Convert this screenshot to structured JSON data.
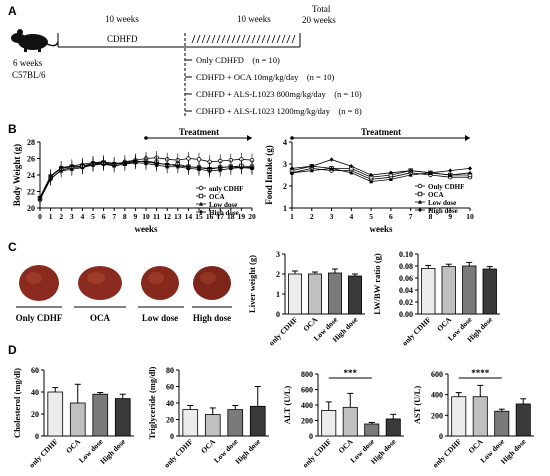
{
  "panels": {
    "a": "A",
    "b": "B",
    "c": "C",
    "d": "D"
  },
  "colors": {
    "only": "#ececec",
    "oca": "#c0c0c0",
    "low": "#7a7a7a",
    "high": "#3a3a3a",
    "line": "#000000"
  },
  "panel_a": {
    "mouse_age": "6 weeks",
    "strain": "C57BL/6",
    "phase1_weeks": "10 weeks",
    "phase1_diet": "CDHFD",
    "phase2_weeks": "10 weeks",
    "total_line1": "Total",
    "total_line2": "20 weeks",
    "groups": [
      "Only CDHFD    (n = 10)",
      "CDHFD + OCA 10mg/kg/day    (n = 10)",
      "CDHFD + ALS-L1023 800mg/kg/day    (n = 10)",
      "CDHFD + ALS-L1023 1200mg/kg/day    (n = 8)"
    ]
  },
  "chart_data": [
    {
      "type": "line",
      "ylabel": "Body Weight (g)",
      "xlabel": "weeks",
      "treatment_label": "Treatment",
      "x": [
        0,
        1,
        2,
        3,
        4,
        5,
        6,
        7,
        8,
        9,
        10,
        11,
        12,
        13,
        14,
        15,
        16,
        17,
        18,
        19,
        20
      ],
      "x_tick_labels": [
        "0",
        "1",
        "2",
        "3",
        "4",
        "5",
        "6",
        "7",
        "8",
        "9",
        "10",
        "11",
        "12",
        "13",
        "14",
        "15",
        "16",
        "17",
        "18",
        "19",
        "20"
      ],
      "ylim": [
        20,
        28
      ],
      "y_ticks": [
        "20",
        "22",
        "24",
        "26",
        "28"
      ],
      "legend": [
        "only CDHF",
        "OCA",
        "Low dose",
        "High dose"
      ],
      "series": [
        {
          "name": "only CDHF",
          "values": [
            21.0,
            23.5,
            24.6,
            24.9,
            25.0,
            25.3,
            25.4,
            25.2,
            25.6,
            25.8,
            26.0,
            26.1,
            25.9,
            25.8,
            26.0,
            25.9,
            25.6,
            25.7,
            25.8,
            25.9,
            25.8
          ]
        },
        {
          "name": "OCA",
          "values": [
            21.2,
            23.8,
            24.8,
            25.0,
            25.1,
            25.4,
            25.5,
            25.3,
            25.4,
            25.6,
            25.7,
            25.5,
            25.2,
            25.3,
            25.0,
            24.9,
            24.7,
            24.9,
            25.0,
            25.1,
            25.0
          ]
        },
        {
          "name": "Low dose",
          "values": [
            21.1,
            23.6,
            24.5,
            24.7,
            24.9,
            25.2,
            25.3,
            25.1,
            25.3,
            25.5,
            25.4,
            25.2,
            25.0,
            25.0,
            24.8,
            24.7,
            24.5,
            24.6,
            24.8,
            24.9,
            24.8
          ]
        },
        {
          "name": "High dose",
          "values": [
            21.3,
            23.9,
            24.9,
            25.1,
            25.3,
            25.5,
            25.6,
            25.4,
            25.5,
            25.7,
            25.6,
            25.4,
            25.3,
            25.1,
            25.0,
            24.9,
            24.8,
            24.9,
            25.0,
            24.9,
            24.9
          ]
        }
      ]
    },
    {
      "type": "line",
      "ylabel": "Food Intake (g)",
      "xlabel": "weeks",
      "treatment_label": "Treatment",
      "x": [
        1,
        2,
        3,
        4,
        5,
        6,
        7,
        8,
        9,
        10
      ],
      "x_tick_labels": [
        "1",
        "2",
        "3",
        "4",
        "5",
        "6",
        "7",
        "8",
        "9",
        "10"
      ],
      "ylim": [
        1,
        4
      ],
      "y_ticks": [
        "1",
        "2",
        "3",
        "4"
      ],
      "legend": [
        "Only CDHF",
        "OCA",
        "Low dose",
        "High dose"
      ],
      "series": [
        {
          "name": "Only CDHF",
          "values": [
            2.6,
            2.8,
            2.7,
            2.7,
            2.3,
            2.4,
            2.6,
            2.5,
            2.4,
            2.4
          ]
        },
        {
          "name": "OCA",
          "values": [
            2.7,
            2.9,
            2.8,
            2.8,
            2.4,
            2.5,
            2.7,
            2.6,
            2.5,
            2.5
          ]
        },
        {
          "name": "Low dose",
          "values": [
            2.6,
            2.7,
            2.8,
            2.6,
            2.2,
            2.3,
            2.5,
            2.6,
            2.5,
            2.6
          ]
        },
        {
          "name": "High dose",
          "values": [
            2.8,
            2.9,
            3.2,
            2.9,
            2.5,
            2.6,
            2.7,
            2.6,
            2.7,
            2.8
          ]
        }
      ]
    },
    {
      "type": "bar",
      "ylabel": "Liver weight (g)",
      "categories": [
        "only CDHF",
        "OCA",
        "Low dose",
        "High dose"
      ],
      "values": [
        2.0,
        2.0,
        2.05,
        1.9
      ],
      "errors": [
        0.15,
        0.1,
        0.2,
        0.1
      ],
      "ylim": [
        0,
        3
      ],
      "y_ticks": [
        "0",
        "1",
        "2",
        "3"
      ]
    },
    {
      "type": "bar",
      "ylabel": "LW/BW ratio (g)",
      "categories": [
        "only CDHF",
        "OCA",
        "Low dose",
        "High dose"
      ],
      "values": [
        0.076,
        0.079,
        0.08,
        0.075
      ],
      "errors": [
        0.005,
        0.004,
        0.006,
        0.004
      ],
      "ylim": [
        0,
        0.1
      ],
      "y_ticks": [
        "0.00",
        "0.02",
        "0.04",
        "0.06",
        "0.08",
        "0.10"
      ]
    },
    {
      "type": "bar",
      "ylabel": "Cholesterol (mg/dl)",
      "categories": [
        "only CDHF",
        "OCA",
        "Low dose",
        "High dose"
      ],
      "values": [
        40,
        30,
        38,
        34
      ],
      "errors": [
        4,
        17,
        1.5,
        4
      ],
      "ylim": [
        0,
        60
      ],
      "y_ticks": [
        "0",
        "20",
        "40",
        "60"
      ]
    },
    {
      "type": "bar",
      "ylabel": "Triglyceride (mg/dl)",
      "categories": [
        "only CDHF",
        "OCA",
        "Low dose",
        "High dose"
      ],
      "values": [
        32,
        26,
        32,
        36
      ],
      "errors": [
        5,
        8,
        5,
        24
      ],
      "ylim": [
        0,
        80
      ],
      "y_ticks": [
        "0",
        "20",
        "40",
        "60",
        "80"
      ]
    },
    {
      "type": "bar",
      "ylabel": "ALT (U/L)",
      "categories": [
        "only CDHF",
        "OCA",
        "Low dose",
        "High dose"
      ],
      "values": [
        330,
        370,
        155,
        220
      ],
      "errors": [
        110,
        180,
        20,
        60
      ],
      "ylim": [
        0,
        800
      ],
      "y_ticks": [
        "0",
        "200",
        "400",
        "600",
        "800"
      ],
      "significance": {
        "from": 0,
        "to": 2,
        "label": "***"
      }
    },
    {
      "type": "bar",
      "ylabel": "AST (U/L)",
      "categories": [
        "only CDHF",
        "OCA",
        "Low dose",
        "High dose"
      ],
      "values": [
        380,
        380,
        240,
        310
      ],
      "errors": [
        40,
        110,
        20,
        50
      ],
      "ylim": [
        0,
        600
      ],
      "y_ticks": [
        "0",
        "200",
        "400",
        "600"
      ],
      "significance": {
        "from": 0,
        "to": 2,
        "label": "****"
      }
    }
  ],
  "panel_c_images": [
    "Only CDHF",
    "OCA",
    "Low dose",
    "High dose"
  ]
}
